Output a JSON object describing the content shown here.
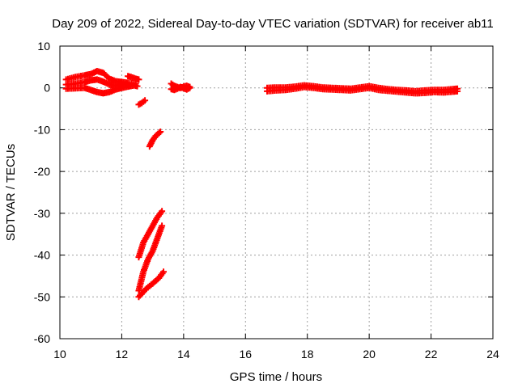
{
  "chart_data": {
    "type": "scatter",
    "title": "Day 209 of 2022, Sidereal Day-to-day VTEC variation (SDTVAR) for receiver ab11",
    "xlabel": "GPS time / hours",
    "ylabel": "SDTVAR / TECUs",
    "xlim": [
      10,
      24
    ],
    "ylim": [
      -60,
      10
    ],
    "xticks": [
      10,
      12,
      14,
      16,
      18,
      20,
      22,
      24
    ],
    "yticks": [
      10,
      0,
      -10,
      -20,
      -30,
      -40,
      -50,
      -60
    ],
    "grid": true,
    "marker_color": "#ff0000",
    "segments": [
      {
        "points": [
          [
            10.2,
            2.0
          ],
          [
            10.5,
            2.6
          ],
          [
            10.8,
            3.0
          ],
          [
            11.0,
            3.3
          ],
          [
            11.2,
            4.0
          ],
          [
            11.4,
            3.6
          ],
          [
            11.6,
            2.2
          ],
          [
            11.8,
            1.6
          ],
          [
            12.0,
            1.4
          ],
          [
            12.2,
            1.2
          ],
          [
            12.45,
            1.0
          ]
        ]
      },
      {
        "points": [
          [
            10.2,
            0.8
          ],
          [
            10.5,
            1.0
          ],
          [
            10.8,
            1.4
          ],
          [
            11.0,
            1.8
          ],
          [
            11.2,
            2.0
          ],
          [
            11.4,
            1.5
          ],
          [
            11.6,
            0.8
          ],
          [
            11.8,
            0.5
          ],
          [
            12.0,
            0.8
          ],
          [
            12.2,
            0.9
          ]
        ]
      },
      {
        "points": [
          [
            10.2,
            -0.2
          ],
          [
            10.5,
            -0.1
          ],
          [
            10.8,
            0.0
          ],
          [
            11.0,
            -0.5
          ],
          [
            11.2,
            -1.0
          ],
          [
            11.4,
            -1.3
          ],
          [
            11.6,
            -1.0
          ],
          [
            11.8,
            -0.4
          ],
          [
            12.0,
            0.0
          ],
          [
            12.2,
            0.3
          ],
          [
            12.4,
            0.6
          ],
          [
            12.5,
            0.4
          ]
        ]
      },
      {
        "points": [
          [
            12.2,
            2.8
          ],
          [
            12.3,
            2.6
          ],
          [
            12.45,
            2.2
          ],
          [
            12.55,
            2.0
          ]
        ]
      },
      {
        "points": [
          [
            12.55,
            -4.0
          ],
          [
            12.65,
            -3.6
          ],
          [
            12.75,
            -3.0
          ]
        ]
      },
      {
        "points": [
          [
            12.9,
            -14.0
          ],
          [
            13.0,
            -12.5
          ],
          [
            13.1,
            -11.5
          ],
          [
            13.25,
            -10.5
          ]
        ]
      },
      {
        "points": [
          [
            12.55,
            -40.5
          ],
          [
            12.7,
            -37.0
          ],
          [
            12.85,
            -35.0
          ],
          [
            13.0,
            -33.0
          ],
          [
            13.15,
            -31.0
          ],
          [
            13.3,
            -29.5
          ]
        ]
      },
      {
        "points": [
          [
            12.55,
            -48.5
          ],
          [
            12.7,
            -44.0
          ],
          [
            12.85,
            -41.0
          ],
          [
            13.0,
            -39.0
          ],
          [
            13.15,
            -36.0
          ],
          [
            13.3,
            -33.0
          ]
        ]
      },
      {
        "points": [
          [
            12.55,
            -50.0
          ],
          [
            12.8,
            -48.0
          ],
          [
            13.0,
            -46.8
          ],
          [
            13.2,
            -45.5
          ],
          [
            13.35,
            -44.0
          ]
        ]
      },
      {
        "points": [
          [
            13.6,
            1.0
          ],
          [
            13.7,
            0.5
          ],
          [
            13.8,
            0.2
          ],
          [
            13.9,
            0.0
          ],
          [
            14.0,
            0.3
          ],
          [
            14.1,
            0.5
          ],
          [
            14.2,
            0.2
          ]
        ]
      },
      {
        "points": [
          [
            13.6,
            -0.3
          ],
          [
            13.7,
            -0.5
          ],
          [
            13.8,
            -0.2
          ],
          [
            13.9,
            0.2
          ],
          [
            14.0,
            -0.1
          ],
          [
            14.1,
            -0.4
          ],
          [
            14.2,
            0.0
          ]
        ]
      },
      {
        "points": [
          [
            16.7,
            -0.8
          ],
          [
            17.0,
            -0.6
          ],
          [
            17.3,
            -0.5
          ],
          [
            17.6,
            -0.2
          ],
          [
            17.9,
            0.2
          ],
          [
            18.2,
            0.0
          ],
          [
            18.5,
            -0.3
          ],
          [
            18.8,
            -0.4
          ],
          [
            19.1,
            -0.5
          ],
          [
            19.4,
            -0.6
          ],
          [
            19.7,
            -0.3
          ],
          [
            20.0,
            0.0
          ],
          [
            20.3,
            -0.5
          ],
          [
            20.6,
            -0.7
          ],
          [
            20.9,
            -0.9
          ],
          [
            21.2,
            -1.1
          ],
          [
            21.5,
            -1.3
          ],
          [
            21.8,
            -1.2
          ],
          [
            22.1,
            -1.0
          ],
          [
            22.4,
            -1.1
          ],
          [
            22.7,
            -0.9
          ],
          [
            22.85,
            -0.8
          ]
        ]
      },
      {
        "points": [
          [
            16.7,
            0.0
          ],
          [
            17.0,
            0.1
          ],
          [
            17.3,
            0.1
          ],
          [
            17.6,
            0.3
          ],
          [
            17.9,
            0.6
          ],
          [
            18.2,
            0.4
          ],
          [
            18.5,
            0.1
          ],
          [
            18.8,
            0.0
          ],
          [
            19.1,
            -0.1
          ],
          [
            19.4,
            -0.2
          ],
          [
            19.7,
            0.1
          ],
          [
            20.0,
            0.4
          ],
          [
            20.3,
            0.0
          ],
          [
            20.6,
            -0.3
          ],
          [
            20.9,
            -0.5
          ],
          [
            21.2,
            -0.6
          ],
          [
            21.5,
            -0.8
          ],
          [
            21.8,
            -0.6
          ],
          [
            22.1,
            -0.5
          ],
          [
            22.4,
            -0.5
          ],
          [
            22.7,
            -0.3
          ],
          [
            22.85,
            -0.2
          ]
        ]
      }
    ]
  }
}
